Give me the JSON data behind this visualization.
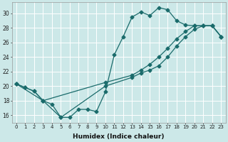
{
  "xlabel": "Humidex (Indice chaleur)",
  "ylabel": "",
  "bg_color": "#cce8e8",
  "grid_color": "#ffffff",
  "line_color": "#1a6b6b",
  "xlim": [
    -0.5,
    23.5
  ],
  "ylim": [
    15.0,
    31.5
  ],
  "xticks": [
    0,
    1,
    2,
    3,
    4,
    5,
    6,
    7,
    8,
    9,
    10,
    11,
    12,
    13,
    14,
    15,
    16,
    17,
    18,
    19,
    20,
    21,
    22,
    23
  ],
  "yticks": [
    16,
    18,
    20,
    22,
    24,
    26,
    28,
    30
  ],
  "line1_x": [
    0,
    1,
    2,
    3,
    4,
    5,
    6,
    7,
    8,
    9,
    10,
    11,
    12,
    13,
    14,
    15,
    16,
    17,
    18,
    19,
    20,
    21,
    22,
    23
  ],
  "line1_y": [
    20.3,
    19.8,
    19.3,
    18.0,
    17.5,
    15.7,
    15.7,
    16.8,
    16.8,
    16.5,
    19.2,
    24.3,
    26.8,
    29.5,
    30.2,
    29.7,
    30.8,
    30.5,
    29.0,
    28.4,
    28.3,
    28.3,
    28.3,
    26.8
  ],
  "line2_x": [
    0,
    3,
    5,
    10,
    13,
    14,
    15,
    16,
    17,
    18,
    19,
    20,
    21,
    22,
    23
  ],
  "line2_y": [
    20.3,
    18.0,
    15.7,
    20.0,
    21.2,
    21.8,
    22.2,
    22.8,
    24.0,
    25.5,
    26.8,
    27.8,
    28.3,
    28.3,
    26.8
  ],
  "line3_x": [
    0,
    1,
    2,
    3,
    10,
    13,
    14,
    15,
    16,
    17,
    18,
    19,
    20,
    21,
    22,
    23
  ],
  "line3_y": [
    20.3,
    19.8,
    19.3,
    18.0,
    20.5,
    21.5,
    22.2,
    23.0,
    24.0,
    25.2,
    26.5,
    27.5,
    28.3,
    28.3,
    28.3,
    26.8
  ]
}
